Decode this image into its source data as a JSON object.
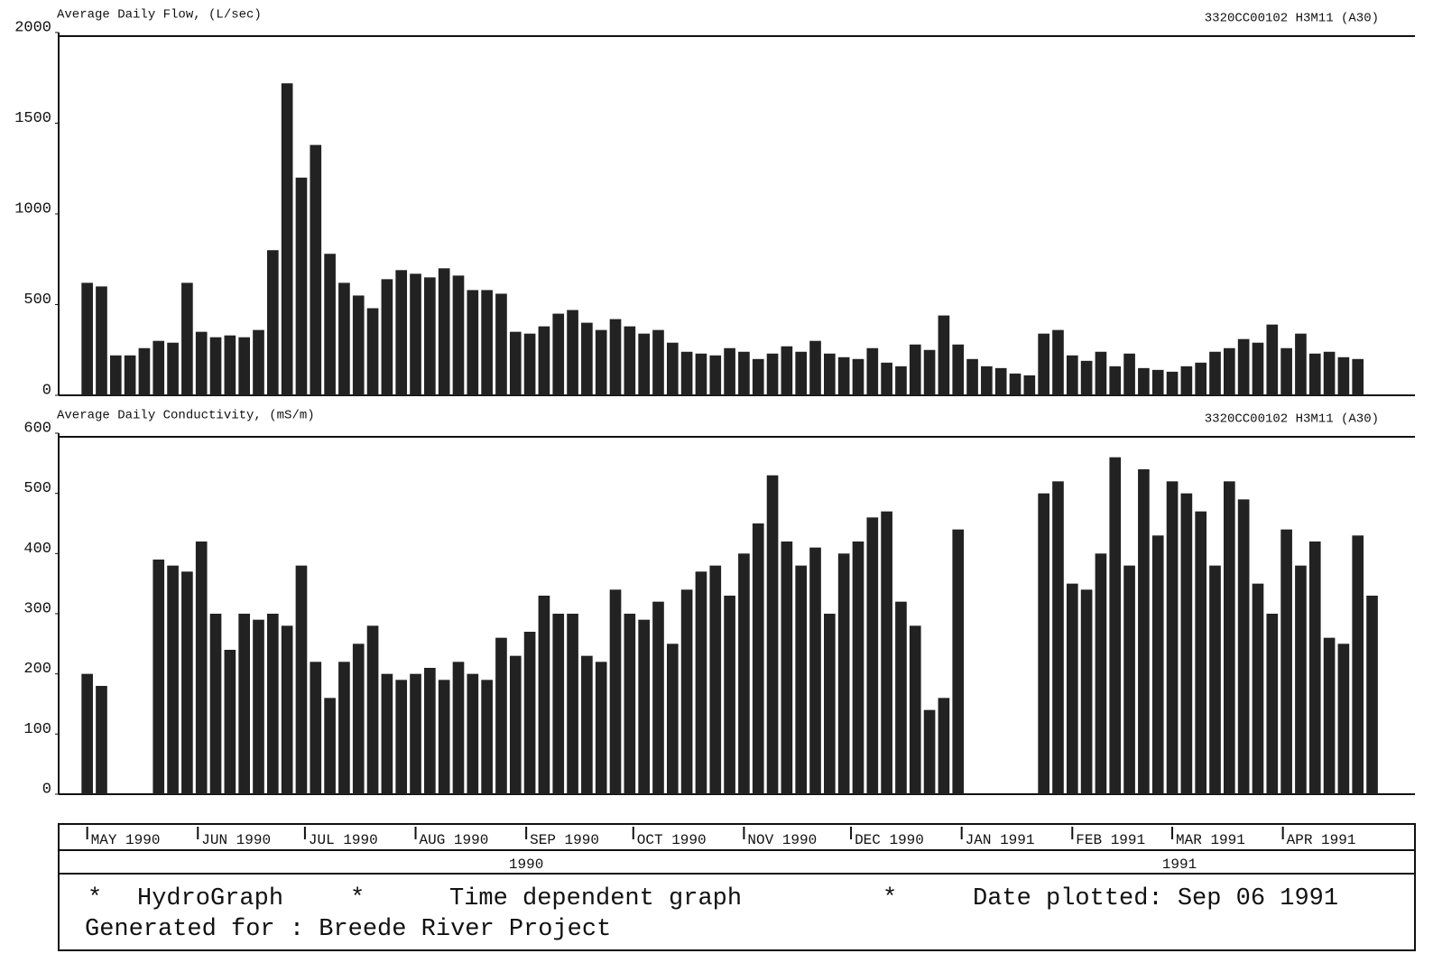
{
  "chart_data": [
    {
      "type": "bar",
      "title": "Average Daily Flow, (L/sec)",
      "annotation": "3320CC00102 H3M11 (A30)",
      "color": "#222222",
      "x": [
        0,
        4,
        8,
        12,
        16,
        20,
        24,
        28,
        32,
        36,
        40,
        44,
        48,
        52,
        56,
        60,
        64,
        68,
        72,
        76,
        80,
        84,
        88,
        92,
        96,
        100,
        104,
        108,
        112,
        116,
        120,
        124,
        128,
        132,
        136,
        140,
        144,
        148,
        152,
        156,
        160,
        164,
        168,
        172,
        176,
        180,
        184,
        188,
        192,
        196,
        200,
        204,
        208,
        212,
        216,
        220,
        224,
        228,
        232,
        236,
        240,
        244,
        248,
        252,
        256,
        260,
        264,
        268,
        272,
        276,
        280,
        284,
        288,
        292,
        296,
        300,
        304,
        308,
        312,
        316,
        320,
        324,
        328,
        332,
        336,
        340,
        344,
        348,
        352,
        356
      ],
      "values": [
        620,
        600,
        220,
        220,
        260,
        300,
        290,
        620,
        350,
        320,
        330,
        320,
        360,
        800,
        1720,
        1200,
        1380,
        780,
        620,
        550,
        480,
        640,
        690,
        670,
        650,
        700,
        660,
        580,
        580,
        560,
        350,
        340,
        380,
        450,
        470,
        400,
        360,
        420,
        380,
        340,
        360,
        290,
        240,
        230,
        220,
        260,
        240,
        200,
        230,
        270,
        240,
        300,
        230,
        210,
        200,
        260,
        180,
        160,
        280,
        250,
        440,
        280,
        200,
        160,
        150,
        120,
        110,
        340,
        360,
        220,
        190,
        240,
        160,
        230,
        150,
        140,
        130,
        160,
        180,
        240,
        260,
        310,
        290,
        390,
        260,
        340,
        230,
        240,
        210,
        200
      ],
      "xlim": [
        -8,
        372
      ],
      "ylim": [
        0,
        2000
      ],
      "yticks": [
        0,
        500,
        1000,
        1500,
        2000
      ]
    },
    {
      "type": "bar",
      "title": "Average Daily Conductivity, (mS/m)",
      "annotation": "3320CC00102 H3M11 (A30)",
      "color": "#222222",
      "x": [
        0,
        4,
        8,
        12,
        16,
        20,
        24,
        28,
        32,
        36,
        40,
        44,
        48,
        52,
        56,
        60,
        64,
        68,
        72,
        76,
        80,
        84,
        88,
        92,
        96,
        100,
        104,
        108,
        112,
        116,
        120,
        124,
        128,
        132,
        136,
        140,
        144,
        148,
        152,
        156,
        160,
        164,
        168,
        172,
        176,
        180,
        184,
        188,
        192,
        196,
        200,
        204,
        208,
        212,
        216,
        220,
        224,
        228,
        232,
        236,
        240,
        244,
        248,
        252,
        256,
        260,
        264,
        268,
        272,
        276,
        280,
        284,
        288,
        292,
        296,
        300,
        304,
        308,
        312,
        316,
        320,
        324,
        328,
        332,
        336,
        340,
        344,
        348,
        352,
        356,
        360
      ],
      "values": [
        200,
        180,
        null,
        null,
        null,
        390,
        380,
        370,
        420,
        300,
        240,
        300,
        290,
        300,
        280,
        380,
        220,
        160,
        220,
        250,
        280,
        200,
        190,
        200,
        210,
        190,
        220,
        200,
        190,
        260,
        230,
        270,
        330,
        300,
        300,
        230,
        220,
        340,
        300,
        290,
        320,
        250,
        340,
        370,
        380,
        330,
        400,
        450,
        530,
        420,
        380,
        410,
        300,
        400,
        420,
        460,
        470,
        320,
        280,
        140,
        160,
        440,
        null,
        null,
        null,
        null,
        null,
        500,
        520,
        350,
        340,
        400,
        560,
        380,
        540,
        430,
        520,
        500,
        470,
        380,
        520,
        490,
        350,
        300,
        440,
        380,
        420,
        260,
        250,
        430,
        330
      ],
      "xlim": [
        -8,
        372
      ],
      "ylim": [
        0,
        600
      ],
      "yticks": [
        0,
        100,
        200,
        300,
        400,
        500,
        600
      ],
      "xticks": [
        {
          "value": 0,
          "label": "MAY 1990"
        },
        {
          "value": 31,
          "label": "JUN 1990"
        },
        {
          "value": 61,
          "label": "JUL 1990"
        },
        {
          "value": 92,
          "label": "AUG 1990"
        },
        {
          "value": 123,
          "label": "SEP 1990"
        },
        {
          "value": 153,
          "label": "OCT 1990"
        },
        {
          "value": 184,
          "label": "NOV 1990"
        },
        {
          "value": 214,
          "label": "DEC 1990"
        },
        {
          "value": 245,
          "label": "JAN 1991"
        },
        {
          "value": 276,
          "label": "FEB 1991"
        },
        {
          "value": 304,
          "label": "MAR 1991"
        },
        {
          "value": 335,
          "label": "APR 1991"
        }
      ],
      "years": [
        {
          "value": 123,
          "label": "1990"
        },
        {
          "value": 306,
          "label": "1991"
        }
      ]
    }
  ],
  "footer": {
    "items": [
      "*",
      "HydroGraph",
      "*",
      "Time dependent graph",
      "*",
      "Date plotted: Sep 06 1991"
    ],
    "generated": "Generated for : Breede River Project"
  }
}
